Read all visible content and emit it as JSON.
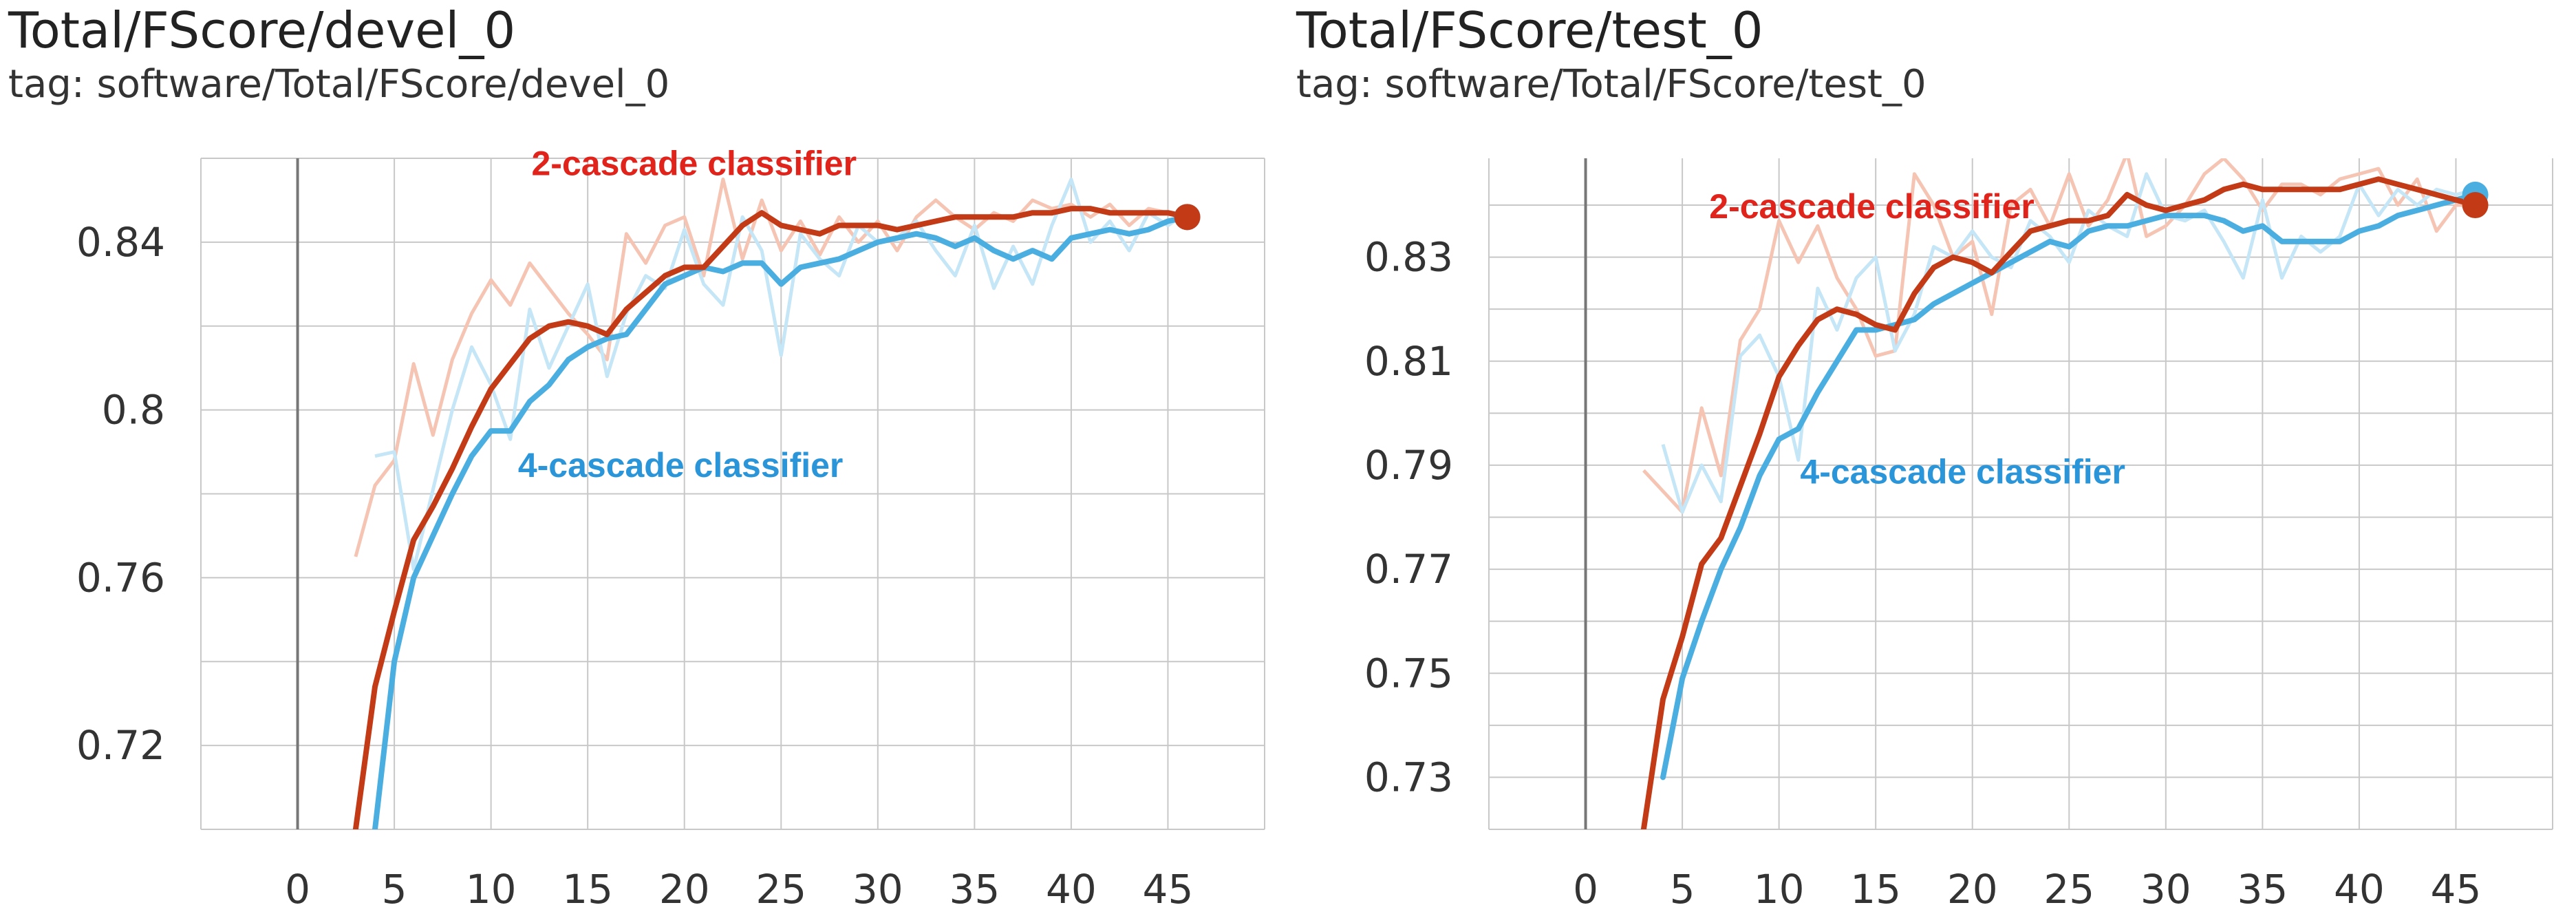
{
  "colors": {
    "series_2_cascade": "#c23a16",
    "series_2_cascade_raw": "#f6c4b3",
    "series_4_cascade": "#4aaee0",
    "series_4_cascade_raw": "#c5e6f6",
    "annotation_2_cascade": "#e0231b",
    "annotation_4_cascade": "#2a95d8",
    "grid": "#c8c8c8",
    "zero_axis": "#777777"
  },
  "chart_data": [
    {
      "type": "line",
      "title": "Total/FScore/devel_0",
      "subtitle": "tag: software/Total/FScore/devel_0",
      "xlabel": "",
      "ylabel": "",
      "xlim": [
        -5,
        50
      ],
      "ylim": [
        0.7,
        0.86
      ],
      "x_ticks": [
        0,
        5,
        10,
        15,
        20,
        25,
        30,
        35,
        40,
        45
      ],
      "y_ticks": [
        0.72,
        0.76,
        0.8,
        0.84
      ],
      "y_tick_labels": [
        "0.72",
        "0.76",
        "0.8",
        "0.84"
      ],
      "grid": true,
      "annotations": [
        {
          "text": "2-cascade classifier",
          "series": "2-cascade",
          "x": 20.5,
          "y": 0.856
        },
        {
          "text": "4-cascade classifier",
          "series": "4-cascade",
          "x": 19.8,
          "y": 0.784
        }
      ],
      "series": [
        {
          "key": "2-cascade",
          "x": [
            3,
            4,
            5,
            6,
            7,
            8,
            9,
            10,
            11,
            12,
            13,
            14,
            15,
            16,
            17,
            18,
            19,
            20,
            21,
            22,
            23,
            24,
            25,
            26,
            27,
            28,
            29,
            30,
            31,
            32,
            33,
            34,
            35,
            36,
            37,
            38,
            39,
            40,
            41,
            42,
            43,
            44,
            45,
            46
          ],
          "smoothed": [
            0.7,
            0.734,
            0.752,
            0.769,
            0.777,
            0.786,
            0.796,
            0.805,
            0.811,
            0.817,
            0.82,
            0.821,
            0.82,
            0.818,
            0.824,
            0.828,
            0.832,
            0.834,
            0.834,
            0.839,
            0.844,
            0.847,
            0.844,
            0.843,
            0.842,
            0.844,
            0.844,
            0.844,
            0.843,
            0.844,
            0.845,
            0.846,
            0.846,
            0.846,
            0.846,
            0.847,
            0.847,
            0.848,
            0.848,
            0.847,
            0.847,
            0.847,
            0.847,
            0.846
          ],
          "raw": [
            0.765,
            0.782,
            0.788,
            0.811,
            0.794,
            0.812,
            0.823,
            0.831,
            0.825,
            0.835,
            0.829,
            0.823,
            0.818,
            0.812,
            0.842,
            0.835,
            0.844,
            0.846,
            0.832,
            0.855,
            0.836,
            0.85,
            0.838,
            0.845,
            0.837,
            0.846,
            0.84,
            0.845,
            0.838,
            0.846,
            0.85,
            0.846,
            0.843,
            0.847,
            0.845,
            0.85,
            0.848,
            0.849,
            0.846,
            0.849,
            0.844,
            0.848,
            0.847,
            0.846
          ]
        },
        {
          "key": "4-cascade",
          "x": [
            4,
            5,
            6,
            7,
            8,
            9,
            10,
            11,
            12,
            13,
            14,
            15,
            16,
            17,
            18,
            19,
            20,
            21,
            22,
            23,
            24,
            25,
            26,
            27,
            28,
            29,
            30,
            31,
            32,
            33,
            34,
            35,
            36,
            37,
            38,
            39,
            40,
            41,
            42,
            43,
            44,
            45,
            46
          ],
          "smoothed": [
            0.7,
            0.74,
            0.76,
            0.77,
            0.78,
            0.789,
            0.795,
            0.795,
            0.802,
            0.806,
            0.812,
            0.815,
            0.817,
            0.818,
            0.824,
            0.83,
            0.832,
            0.834,
            0.833,
            0.835,
            0.835,
            0.83,
            0.834,
            0.835,
            0.836,
            0.838,
            0.84,
            0.841,
            0.842,
            0.841,
            0.839,
            0.841,
            0.838,
            0.836,
            0.838,
            0.836,
            0.841,
            0.842,
            0.843,
            0.842,
            0.843,
            0.845,
            0.846
          ],
          "raw": [
            0.789,
            0.79,
            0.762,
            0.781,
            0.8,
            0.815,
            0.806,
            0.793,
            0.824,
            0.81,
            0.82,
            0.83,
            0.808,
            0.823,
            0.832,
            0.829,
            0.843,
            0.83,
            0.825,
            0.846,
            0.838,
            0.813,
            0.842,
            0.836,
            0.832,
            0.844,
            0.84,
            0.841,
            0.845,
            0.838,
            0.832,
            0.844,
            0.829,
            0.839,
            0.83,
            0.844,
            0.855,
            0.84,
            0.845,
            0.838,
            0.847,
            0.844,
            0.847
          ]
        }
      ]
    },
    {
      "type": "line",
      "title": "Total/FScore/test_0",
      "subtitle": "tag: software/Total/FScore/test_0",
      "xlabel": "",
      "ylabel": "",
      "xlim": [
        -5,
        50
      ],
      "ylim": [
        0.72,
        0.849
      ],
      "x_ticks": [
        0,
        5,
        10,
        15,
        20,
        25,
        30,
        35,
        40,
        45
      ],
      "y_ticks": [
        0.73,
        0.75,
        0.77,
        0.79,
        0.81,
        0.83
      ],
      "y_tick_labels": [
        "0.73",
        "0.75",
        "0.77",
        "0.79",
        "0.81",
        "0.83"
      ],
      "grid": true,
      "annotations": [
        {
          "text": "2-cascade classifier",
          "series": "2-cascade",
          "x": 14.8,
          "y": 0.8375
        },
        {
          "text": "4-cascade classifier",
          "series": "4-cascade",
          "x": 19.5,
          "y": 0.7865
        }
      ],
      "series": [
        {
          "key": "2-cascade",
          "x": [
            3,
            4,
            5,
            6,
            7,
            8,
            9,
            10,
            11,
            12,
            13,
            14,
            15,
            16,
            17,
            18,
            19,
            20,
            21,
            22,
            23,
            24,
            25,
            26,
            27,
            28,
            29,
            30,
            31,
            32,
            33,
            34,
            35,
            36,
            37,
            38,
            39,
            40,
            41,
            42,
            43,
            44,
            45,
            46
          ],
          "smoothed": [
            0.72,
            0.745,
            0.757,
            0.771,
            0.776,
            0.786,
            0.796,
            0.807,
            0.813,
            0.818,
            0.82,
            0.819,
            0.817,
            0.816,
            0.823,
            0.828,
            0.83,
            0.829,
            0.827,
            0.831,
            0.835,
            0.836,
            0.837,
            0.837,
            0.838,
            0.842,
            0.84,
            0.839,
            0.84,
            0.841,
            0.843,
            0.844,
            0.843,
            0.843,
            0.843,
            0.843,
            0.843,
            0.844,
            0.845,
            0.844,
            0.843,
            0.842,
            0.841,
            0.84
          ],
          "raw": [
            0.789,
            0.785,
            0.781,
            0.801,
            0.788,
            0.814,
            0.82,
            0.837,
            0.829,
            0.836,
            0.826,
            0.82,
            0.811,
            0.812,
            0.846,
            0.84,
            0.83,
            0.833,
            0.819,
            0.84,
            0.843,
            0.836,
            0.846,
            0.836,
            0.841,
            0.85,
            0.834,
            0.836,
            0.84,
            0.846,
            0.849,
            0.845,
            0.839,
            0.844,
            0.844,
            0.842,
            0.845,
            0.846,
            0.847,
            0.84,
            0.845,
            0.835,
            0.84,
            0.84
          ]
        },
        {
          "key": "4-cascade",
          "x": [
            4,
            5,
            6,
            7,
            8,
            9,
            10,
            11,
            12,
            13,
            14,
            15,
            16,
            17,
            18,
            19,
            20,
            21,
            22,
            23,
            24,
            25,
            26,
            27,
            28,
            29,
            30,
            31,
            32,
            33,
            34,
            35,
            36,
            37,
            38,
            39,
            40,
            41,
            42,
            43,
            44,
            45,
            46
          ],
          "smoothed": [
            0.73,
            0.749,
            0.76,
            0.77,
            0.778,
            0.788,
            0.795,
            0.797,
            0.804,
            0.81,
            0.816,
            0.816,
            0.817,
            0.818,
            0.821,
            0.823,
            0.825,
            0.827,
            0.829,
            0.831,
            0.833,
            0.832,
            0.835,
            0.836,
            0.836,
            0.837,
            0.838,
            0.838,
            0.838,
            0.837,
            0.835,
            0.836,
            0.833,
            0.833,
            0.833,
            0.833,
            0.835,
            0.836,
            0.838,
            0.839,
            0.84,
            0.841,
            0.842
          ],
          "raw": [
            0.794,
            0.781,
            0.79,
            0.783,
            0.811,
            0.815,
            0.807,
            0.791,
            0.824,
            0.816,
            0.826,
            0.83,
            0.812,
            0.819,
            0.832,
            0.83,
            0.835,
            0.83,
            0.828,
            0.837,
            0.834,
            0.829,
            0.839,
            0.836,
            0.834,
            0.846,
            0.838,
            0.837,
            0.839,
            0.833,
            0.826,
            0.841,
            0.826,
            0.834,
            0.831,
            0.834,
            0.844,
            0.838,
            0.843,
            0.84,
            0.843,
            0.842,
            0.843
          ]
        }
      ]
    }
  ]
}
